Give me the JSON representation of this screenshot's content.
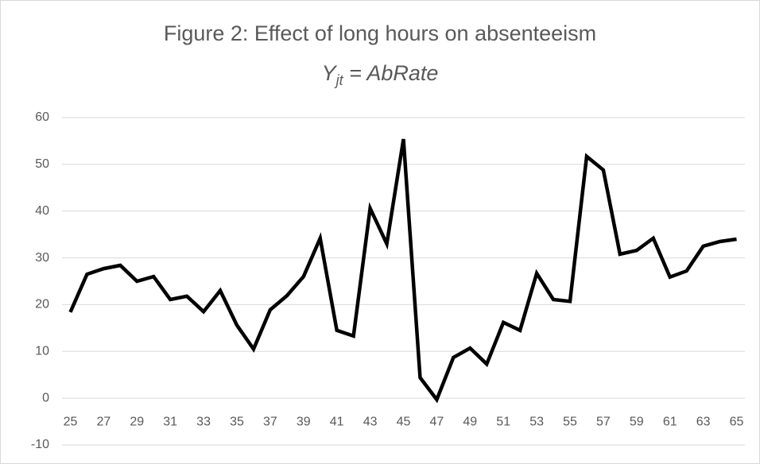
{
  "chart_data": {
    "type": "line",
    "title": "Figure 2:  Effect of long hours on absenteeism",
    "subtitle_parts": [
      "Y",
      "jt",
      " = AbRate"
    ],
    "x": [
      25,
      26,
      27,
      28,
      29,
      30,
      31,
      32,
      33,
      34,
      35,
      36,
      37,
      38,
      39,
      40,
      41,
      42,
      43,
      44,
      45,
      46,
      47,
      48,
      49,
      50,
      51,
      52,
      53,
      54,
      55,
      56,
      57,
      58,
      59,
      60,
      61,
      62,
      63,
      64,
      65
    ],
    "series": [
      {
        "color": "#000000",
        "values": [
          18.4,
          26.5,
          27.7,
          28.4,
          25,
          26,
          21.1,
          21.8,
          18.5,
          23,
          15.6,
          10.5,
          18.9,
          21.9,
          26,
          34.2,
          14.5,
          13.3,
          40.6,
          33,
          55.4,
          4.4,
          -0.3,
          8.7,
          10.7,
          7.3,
          16.2,
          14.5,
          26.7,
          21.1,
          20.7,
          51.7,
          48.8,
          30.8,
          31.6,
          34.2,
          25.9,
          27.2,
          32.5,
          33.5,
          34
        ]
      }
    ],
    "xlim": [
      24.5,
      65.5
    ],
    "xticks": [
      25,
      27,
      29,
      31,
      33,
      35,
      37,
      39,
      41,
      43,
      45,
      47,
      49,
      51,
      53,
      55,
      57,
      59,
      61,
      63,
      65
    ],
    "ylim": [
      -10,
      60
    ],
    "yticks": [
      -10,
      0,
      10,
      20,
      30,
      40,
      50,
      60
    ],
    "grid": true
  }
}
